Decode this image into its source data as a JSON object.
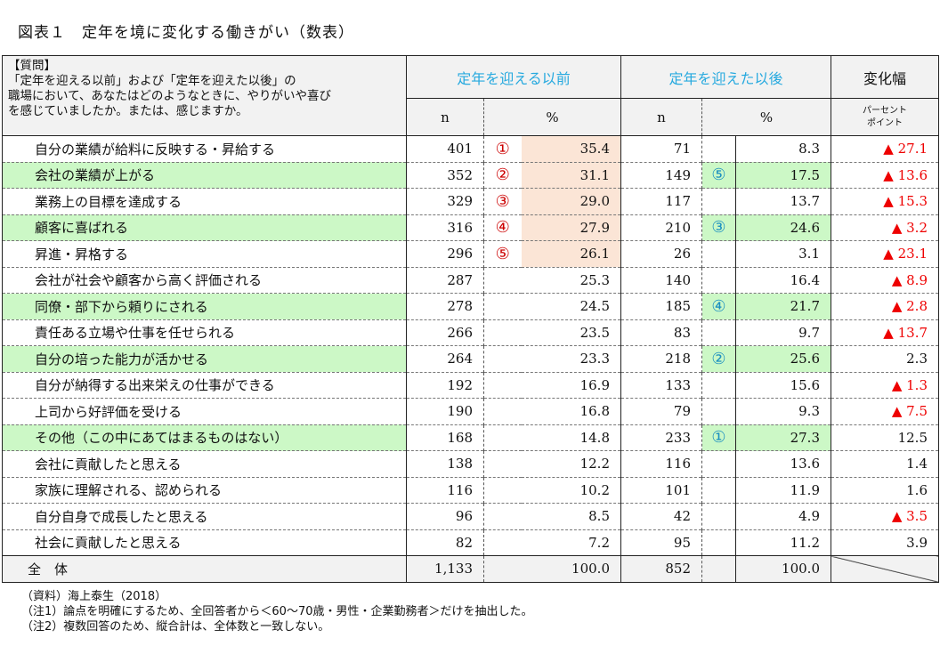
{
  "title": "図表１　定年を境に変化する働きがい（数表）",
  "header": {
    "question_label": "【質問】",
    "question_lines": [
      "「定年を迎える以前」および「定年を迎えた以後」の",
      "職場において、あなたはどのようなときに、やりがいや喜び",
      "を感じていましたか。または、感じますか。"
    ],
    "before": "定年を迎える以前",
    "after": "定年を迎えた以後",
    "change": "変化幅",
    "n": "n",
    "pct": "%",
    "pp_line1": "パーセント",
    "pp_line2": "ポイント"
  },
  "rows": [
    {
      "label": "自分の業績が給料に反映する・昇給する",
      "n1": "401",
      "r1": "①",
      "p1": "35.4",
      "n2": "71",
      "r2": "",
      "p2": "8.3",
      "d": "▲ 27.1",
      "hl": false
    },
    {
      "label": "会社の業績が上がる",
      "n1": "352",
      "r1": "②",
      "p1": "31.1",
      "n2": "149",
      "r2": "⑤",
      "p2": "17.5",
      "d": "▲ 13.6",
      "hl": true
    },
    {
      "label": "業務上の目標を達成する",
      "n1": "329",
      "r1": "③",
      "p1": "29.0",
      "n2": "117",
      "r2": "",
      "p2": "13.7",
      "d": "▲ 15.3",
      "hl": false
    },
    {
      "label": "顧客に喜ばれる",
      "n1": "316",
      "r1": "④",
      "p1": "27.9",
      "n2": "210",
      "r2": "③",
      "p2": "24.6",
      "d": "▲ 3.2",
      "hl": true
    },
    {
      "label": "昇進・昇格する",
      "n1": "296",
      "r1": "⑤",
      "p1": "26.1",
      "n2": "26",
      "r2": "",
      "p2": "3.1",
      "d": "▲ 23.1",
      "hl": false
    },
    {
      "label": "会社が社会や顧客から高く評価される",
      "n1": "287",
      "r1": "",
      "p1": "25.3",
      "n2": "140",
      "r2": "",
      "p2": "16.4",
      "d": "▲ 8.9",
      "hl": false
    },
    {
      "label": "同僚・部下から頼りにされる",
      "n1": "278",
      "r1": "",
      "p1": "24.5",
      "n2": "185",
      "r2": "④",
      "p2": "21.7",
      "d": "▲ 2.8",
      "hl": true
    },
    {
      "label": "責任ある立場や仕事を任せられる",
      "n1": "266",
      "r1": "",
      "p1": "23.5",
      "n2": "83",
      "r2": "",
      "p2": "9.7",
      "d": "▲ 13.7",
      "hl": false
    },
    {
      "label": "自分の培った能力が活かせる",
      "n1": "264",
      "r1": "",
      "p1": "23.3",
      "n2": "218",
      "r2": "②",
      "p2": "25.6",
      "d": "2.3",
      "hl": true
    },
    {
      "label": "自分が納得する出来栄えの仕事ができる",
      "n1": "192",
      "r1": "",
      "p1": "16.9",
      "n2": "133",
      "r2": "",
      "p2": "15.6",
      "d": "▲ 1.3",
      "hl": false
    },
    {
      "label": "上司から好評価を受ける",
      "n1": "190",
      "r1": "",
      "p1": "16.8",
      "n2": "79",
      "r2": "",
      "p2": "9.3",
      "d": "▲ 7.5",
      "hl": false
    },
    {
      "label": "その他（この中にあてはまるものはない）",
      "n1": "168",
      "r1": "",
      "p1": "14.8",
      "n2": "233",
      "r2": "①",
      "p2": "27.3",
      "d": "12.5",
      "hl": true
    },
    {
      "label": "会社に貢献したと思える",
      "n1": "138",
      "r1": "",
      "p1": "12.2",
      "n2": "116",
      "r2": "",
      "p2": "13.6",
      "d": "1.4",
      "hl": false
    },
    {
      "label": "家族に理解される、認められる",
      "n1": "116",
      "r1": "",
      "p1": "10.2",
      "n2": "101",
      "r2": "",
      "p2": "11.9",
      "d": "1.6",
      "hl": false
    },
    {
      "label": "自分自身で成長したと思える",
      "n1": "96",
      "r1": "",
      "p1": "8.5",
      "n2": "42",
      "r2": "",
      "p2": "4.9",
      "d": "▲ 3.5",
      "hl": false
    },
    {
      "label": "社会に貢献したと思える",
      "n1": "82",
      "r1": "",
      "p1": "7.2",
      "n2": "95",
      "r2": "",
      "p2": "11.2",
      "d": "3.9",
      "hl": false
    }
  ],
  "total": {
    "label": "全　体",
    "n1": "1,133",
    "p1": "100.0",
    "n2": "852",
    "p2": "100.0"
  },
  "notes": [
    "（資料）海上泰生（2018）",
    "（注1）論点を明確にするため、全回答者から＜60～70歳・男性・企業勤務者＞だけを抽出した。",
    "（注2）複数回答のため、縦合計は、全体数と一致しない。"
  ]
}
